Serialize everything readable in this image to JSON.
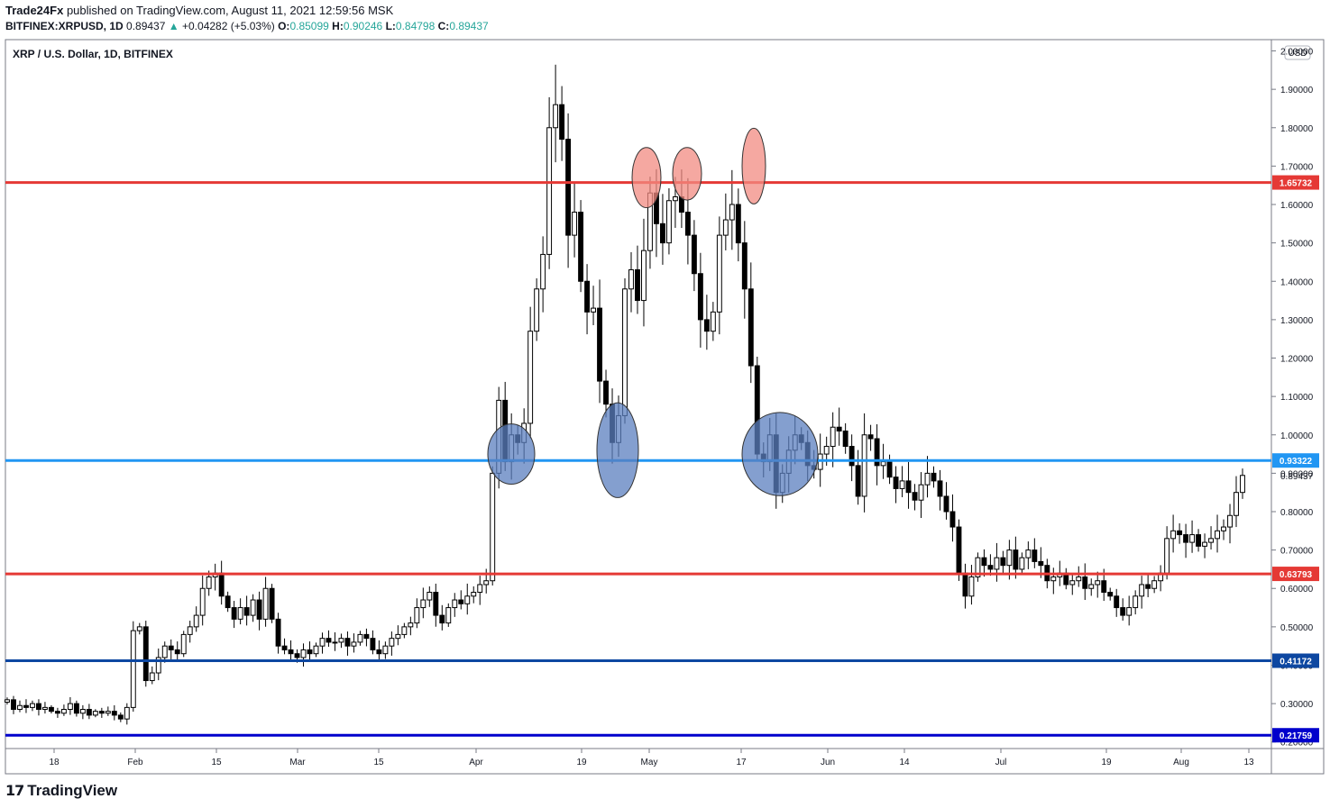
{
  "header": {
    "publisher": "Trade24Fx",
    "published_text": "published on TradingView.com, August 11, 2021 12:59:56 MSK",
    "symbol": "BITFINEX:XRPUSD, 1D",
    "last": "0.89437",
    "change_arrow": "▲",
    "change": "+0.04282 (+5.03%)",
    "o_label": "O:",
    "o_value": "0.85099",
    "h_label": "H:",
    "h_value": "0.90246",
    "l_label": "L:",
    "l_value": "0.84798",
    "c_label": "C:",
    "c_value": "0.89437"
  },
  "footer": {
    "brand": "TradingView",
    "logo_icon": "tradingview-logo-icon"
  },
  "chart_data": {
    "type": "candlestick",
    "title": "XRP / U.S. Dollar, 1D, BITFINEX",
    "currency_label": "USD",
    "ylim": [
      0.19,
      2.02
    ],
    "y_ticks": [
      "2.00000",
      "1.90000",
      "1.80000",
      "1.70000",
      "1.60000",
      "1.50000",
      "1.40000",
      "1.30000",
      "1.20000",
      "1.10000",
      "1.00000",
      "0.90000",
      "0.80000",
      "0.70000",
      "0.60000",
      "0.50000",
      "0.40000",
      "0.30000",
      "0.20000"
    ],
    "x_ticks": [
      "18",
      "Feb",
      "15",
      "Mar",
      "15",
      "Apr",
      "19",
      "May",
      "17",
      "Jun",
      "14",
      "Jul",
      "19",
      "Aug",
      "13"
    ],
    "last_price_label": "0.89437",
    "horizontal_levels": [
      {
        "value": 1.65732,
        "label": "1.65732",
        "color": "#e53935"
      },
      {
        "value": 0.93322,
        "label": "0.93322",
        "color": "#2196f3"
      },
      {
        "value": 0.63793,
        "label": "0.63793",
        "color": "#e53935"
      },
      {
        "value": 0.41172,
        "label": "0.41172",
        "color": "#0d47a1"
      },
      {
        "value": 0.21759,
        "label": "0.21759",
        "color": "#0000cc"
      }
    ],
    "highlight_ellipses": [
      {
        "color": "#f28b82",
        "x_day": 95,
        "y_center": 1.67,
        "y_span": 0.11
      },
      {
        "color": "#f28b82",
        "x_day": 103,
        "y_center": 1.68,
        "y_span": 0.09
      },
      {
        "color": "#f28b82",
        "x_day": 117,
        "y_center": 1.7,
        "y_span": 0.15
      },
      {
        "color": "#5b7fbf",
        "x_day": 66,
        "y_center": 0.95,
        "y_span": 0.11
      },
      {
        "color": "#5b7fbf",
        "x_day": 90,
        "y_center": 0.96,
        "y_span": 0.2
      },
      {
        "color": "#5b7fbf",
        "x_day": 124,
        "y_center": 0.95,
        "y_span": 0.17
      }
    ],
    "closes": [
      0.31,
      0.285,
      0.295,
      0.29,
      0.3,
      0.285,
      0.29,
      0.28,
      0.275,
      0.285,
      0.3,
      0.275,
      0.285,
      0.27,
      0.28,
      0.275,
      0.28,
      0.27,
      0.26,
      0.29,
      0.49,
      0.5,
      0.36,
      0.38,
      0.42,
      0.45,
      0.44,
      0.43,
      0.48,
      0.5,
      0.53,
      0.6,
      0.63,
      0.64,
      0.58,
      0.55,
      0.52,
      0.55,
      0.53,
      0.57,
      0.52,
      0.6,
      0.52,
      0.45,
      0.44,
      0.43,
      0.42,
      0.44,
      0.43,
      0.45,
      0.47,
      0.46,
      0.46,
      0.47,
      0.45,
      0.46,
      0.48,
      0.47,
      0.44,
      0.43,
      0.45,
      0.47,
      0.48,
      0.5,
      0.51,
      0.55,
      0.57,
      0.59,
      0.53,
      0.51,
      0.55,
      0.57,
      0.56,
      0.58,
      0.59,
      0.61,
      0.62,
      0.9,
      1.09,
      0.93,
      1.0,
      0.98,
      1.03,
      1.27,
      1.38,
      1.47,
      1.8,
      1.86,
      1.77,
      1.52,
      1.58,
      1.4,
      1.32,
      1.33,
      1.14,
      1.08,
      0.98,
      1.05,
      1.38,
      1.43,
      1.35,
      1.48,
      1.63,
      1.55,
      1.5,
      1.61,
      1.62,
      1.58,
      1.52,
      1.42,
      1.3,
      1.27,
      1.32,
      1.52,
      1.56,
      1.6,
      1.5,
      1.38,
      1.18,
      0.95,
      0.93,
      1.0,
      0.85,
      0.9,
      0.96,
      1.0,
      0.98,
      0.92,
      0.91,
      0.95,
      0.97,
      1.02,
      1.01,
      0.97,
      0.92,
      0.84,
      1.0,
      0.99,
      0.92,
      0.93,
      0.89,
      0.86,
      0.88,
      0.85,
      0.83,
      0.87,
      0.9,
      0.88,
      0.84,
      0.8,
      0.76,
      0.64,
      0.58,
      0.63,
      0.68,
      0.66,
      0.65,
      0.68,
      0.66,
      0.7,
      0.65,
      0.68,
      0.7,
      0.67,
      0.66,
      0.62,
      0.63,
      0.64,
      0.61,
      0.62,
      0.63,
      0.6,
      0.61,
      0.62,
      0.59,
      0.58,
      0.55,
      0.53,
      0.55,
      0.58,
      0.61,
      0.6,
      0.62,
      0.64,
      0.73,
      0.75,
      0.74,
      0.72,
      0.74,
      0.71,
      0.72,
      0.73,
      0.75,
      0.76,
      0.79,
      0.85,
      0.89437
    ]
  }
}
